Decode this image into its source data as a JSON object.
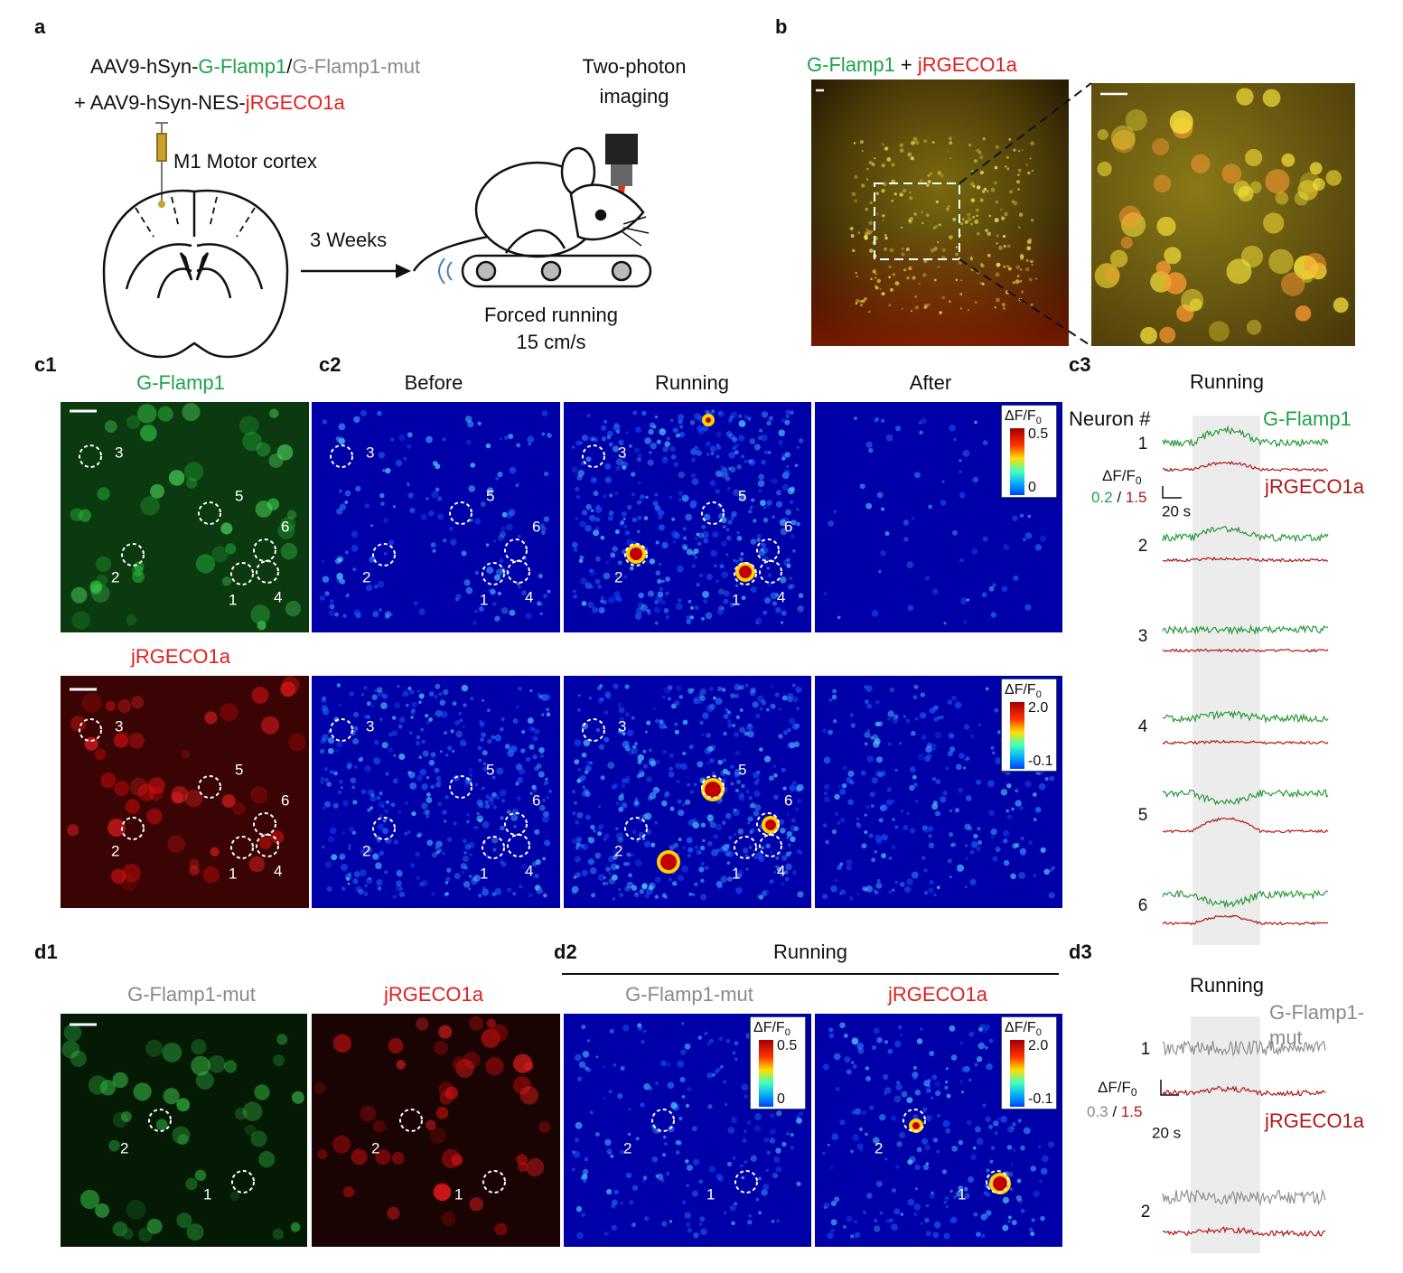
{
  "panel_labels": {
    "a": "a",
    "b": "b",
    "c1": "c1",
    "c2": "c2",
    "c3": "c3",
    "d1": "d1",
    "d2": "d2",
    "d3": "d3"
  },
  "a": {
    "line1": [
      "AAV9-hSyn-",
      "G-Flamp1",
      "/",
      "G-Flamp1-mut"
    ],
    "line2": [
      "+ AAV9-hSyn-NES-",
      "jRGECO1a"
    ],
    "injection": "M1 Motor cortex",
    "duration": "3 Weeks",
    "imaging": [
      "Two-photon",
      "imaging"
    ],
    "running": [
      "Forced running",
      "15 cm/s"
    ]
  },
  "b": {
    "title": [
      "G-Flamp1",
      " + ",
      "jRGECO1a"
    ]
  },
  "c1": {
    "top": "G-Flamp1",
    "bottom": "jRGECO1a"
  },
  "c2": {
    "columns": [
      "Before",
      "Running",
      "After"
    ],
    "colorbar_top": [
      "0.5",
      "0"
    ],
    "colorbar_bottom": [
      "2.0",
      "-0.1"
    ]
  },
  "dff": [
    "ΔF/F",
    "0"
  ],
  "neurons": [
    "1",
    "2",
    "3",
    "4",
    "5",
    "6"
  ],
  "c3": {
    "title": "Running",
    "neuron_header": "Neuron #",
    "green": "G-Flamp1",
    "red": "jRGECO1a",
    "scale": [
      "0.2",
      " / ",
      "1.5"
    ],
    "time": "20 s"
  },
  "d1": {
    "left": "G-Flamp1-mut",
    "right": "jRGECO1a"
  },
  "d2": {
    "title": "Running",
    "left": "G-Flamp1-mut",
    "right": "jRGECO1a",
    "colorbar_left": [
      "0.5",
      "0"
    ],
    "colorbar_right": [
      "2.0",
      "-0.1"
    ]
  },
  "d3": {
    "title": "Running",
    "gray": [
      "G-Flamp1-",
      "mut"
    ],
    "red": "jRGECO1a",
    "scale": [
      "0.3",
      " / ",
      "1.5"
    ],
    "time": "20 s"
  }
}
